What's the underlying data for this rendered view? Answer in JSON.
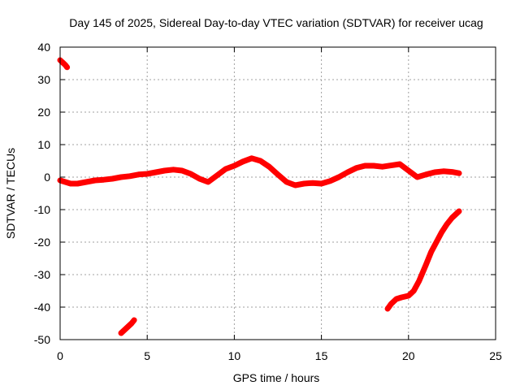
{
  "chart_data": {
    "type": "line",
    "title": "Day 145 of 2025, Sidereal Day-to-day VTEC variation (SDTVAR) for receiver ucag",
    "xlabel": "GPS time / hours",
    "ylabel": "SDTVAR / TECUs",
    "xlim": [
      0,
      25
    ],
    "ylim": [
      -50,
      40
    ],
    "xticks": [
      0,
      5,
      10,
      15,
      20,
      25
    ],
    "yticks": [
      -50,
      -40,
      -30,
      -20,
      -10,
      0,
      10,
      20,
      30,
      40
    ],
    "grid": true,
    "series_color": "#ff0000",
    "series": [
      {
        "name": "segment-early-high",
        "x": [
          0.0,
          0.1,
          0.2,
          0.3,
          0.4
        ],
        "y": [
          36,
          35.5,
          35,
          34.5,
          33.8
        ]
      },
      {
        "name": "segment-early-low",
        "x": [
          3.5,
          3.7,
          3.9,
          4.1,
          4.25
        ],
        "y": [
          -48,
          -47,
          -46,
          -45,
          -44
        ]
      },
      {
        "name": "segment-main",
        "x": [
          0.0,
          0.3,
          0.6,
          1.0,
          1.5,
          2.0,
          2.5,
          3.0,
          3.5,
          4.0,
          4.5,
          5.0,
          5.5,
          6.0,
          6.5,
          7.0,
          7.5,
          8.0,
          8.5,
          9.0,
          9.5,
          10.0,
          10.5,
          11.0,
          11.5,
          12.0,
          12.5,
          13.0,
          13.5,
          14.0,
          14.5,
          15.0,
          15.5,
          16.0,
          16.5,
          17.0,
          17.5,
          18.0,
          18.5,
          19.0,
          19.5,
          20.0,
          20.5,
          21.0,
          21.5,
          22.0,
          22.5,
          22.9
        ],
        "y": [
          -1.0,
          -1.5,
          -2.0,
          -2.0,
          -1.5,
          -1.0,
          -0.8,
          -0.5,
          0.0,
          0.3,
          0.8,
          1.0,
          1.5,
          2.0,
          2.3,
          2.0,
          1.0,
          -0.5,
          -1.5,
          0.5,
          2.5,
          3.5,
          4.8,
          5.8,
          5.0,
          3.2,
          0.8,
          -1.5,
          -2.5,
          -2.0,
          -1.8,
          -2.0,
          -1.2,
          0.0,
          1.5,
          2.8,
          3.5,
          3.5,
          3.2,
          3.6,
          4.0,
          2.0,
          0.0,
          0.8,
          1.5,
          1.8,
          1.6,
          1.2
        ]
      },
      {
        "name": "segment-late-rise",
        "x": [
          18.8,
          19.0,
          19.3,
          19.6,
          20.0,
          20.3,
          20.6,
          21.0,
          21.3,
          21.6,
          21.9,
          22.2,
          22.5,
          22.9
        ],
        "y": [
          -40.5,
          -39,
          -37.5,
          -37,
          -36.5,
          -35,
          -32,
          -27,
          -23,
          -20,
          -17,
          -14.5,
          -12.5,
          -10.5
        ]
      }
    ]
  }
}
